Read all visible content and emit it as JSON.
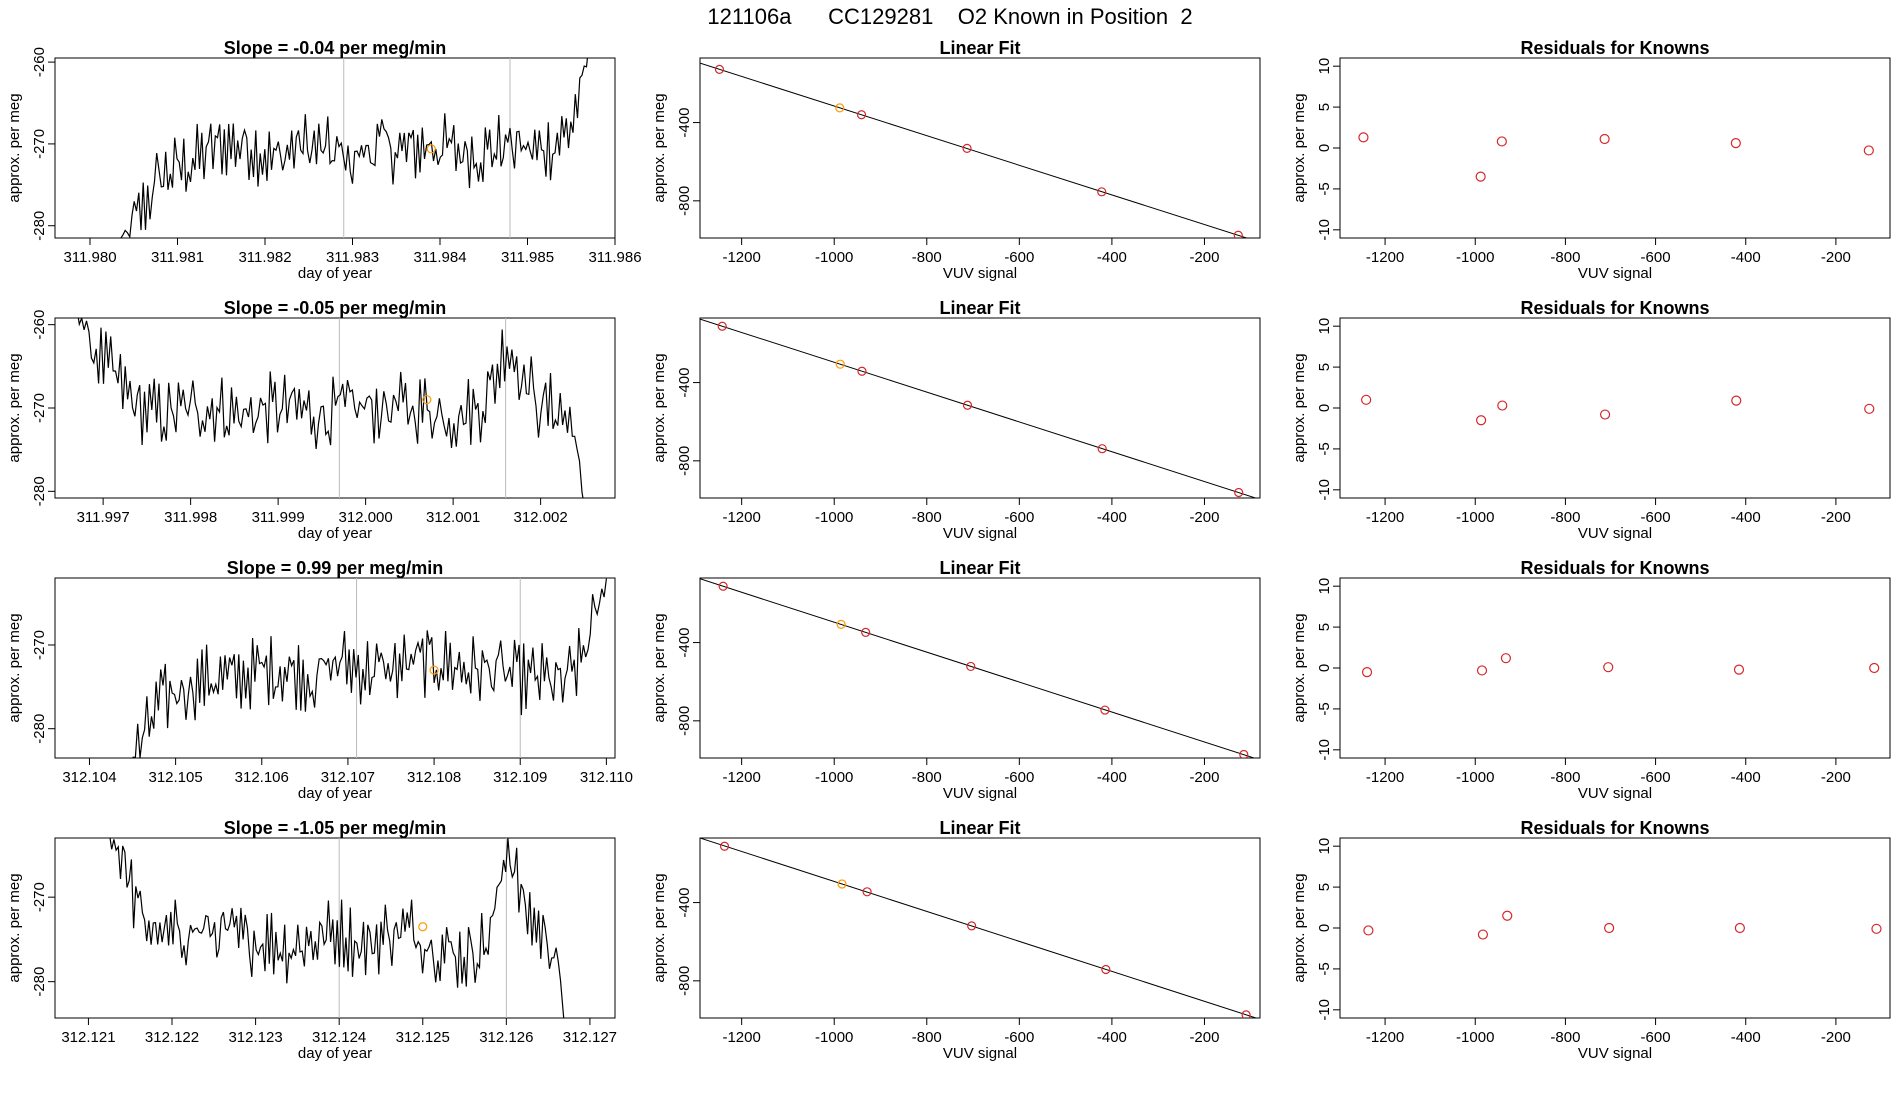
{
  "title": "121106a      CC129281    O2 Known in Position  2",
  "colors": {
    "line": "#000000",
    "point": "#d62728",
    "highlight": "#ff9900",
    "vline": "#bbbbbb",
    "axis": "#000000"
  },
  "rows": [
    {
      "timeseries": {
        "title": "Slope =  -0.04  per meg/min",
        "xlabel": "day of year",
        "ylabel": "approx. per meg",
        "xlim": [
          311.9796,
          311.986
        ],
        "ylim": [
          -281.5,
          -259.5
        ],
        "xticks": [
          311.98,
          311.981,
          311.982,
          311.983,
          311.984,
          311.985,
          311.986
        ],
        "xdec": 3,
        "yticks": [
          -280,
          -270,
          -260
        ],
        "vlines": [
          311.9829,
          311.9848
        ],
        "marker": {
          "x": 311.9839,
          "y": -270.6
        },
        "start_x": 311.9803,
        "end_x": 311.9857,
        "anchors": [
          [
            311.9803,
            -283
          ],
          [
            311.9806,
            -278
          ],
          [
            311.9808,
            -274
          ],
          [
            311.9812,
            -272
          ],
          [
            311.9815,
            -270
          ],
          [
            311.9818,
            -270
          ],
          [
            311.9821,
            -272
          ],
          [
            311.9824,
            -270
          ],
          [
            311.9827,
            -271
          ],
          [
            311.983,
            -272
          ],
          [
            311.9833,
            -270
          ],
          [
            311.9836,
            -271
          ],
          [
            311.9839,
            -270
          ],
          [
            311.9842,
            -271
          ],
          [
            311.9845,
            -271
          ],
          [
            311.9848,
            -270
          ],
          [
            311.9851,
            -271
          ],
          [
            311.9853,
            -270
          ],
          [
            311.9855,
            -268
          ],
          [
            311.9856,
            -263
          ],
          [
            311.9857,
            -259
          ]
        ]
      },
      "fit": {
        "title": "Linear Fit",
        "xlabel": "VUV signal",
        "ylabel": "approx. per meg",
        "xlim": [
          -1290,
          -80
        ],
        "ylim": [
          -990,
          -70
        ],
        "xticks": [
          -1200,
          -1000,
          -800,
          -600,
          -400,
          -200
        ],
        "yticks": [
          -400,
          -800
        ],
        "points": [
          [
            -1248,
            -128
          ],
          [
            -988,
            -325
          ],
          [
            -941,
            -360
          ],
          [
            -713,
            -532
          ],
          [
            -422,
            -754
          ],
          [
            -127,
            -976
          ]
        ],
        "highlight_index": 1
      },
      "resid": {
        "title": "Residuals for Knowns",
        "xlabel": "VUV signal",
        "ylabel": "approx. per meg",
        "xlim": [
          -1300,
          -80
        ],
        "ylim": [
          -11,
          11
        ],
        "xticks": [
          -1200,
          -1000,
          -800,
          -600,
          -400,
          -200
        ],
        "yticks": [
          10,
          5,
          0,
          -5,
          -10
        ],
        "points": [
          [
            -1248,
            1.3
          ],
          [
            -988,
            -3.5
          ],
          [
            -941,
            0.8
          ],
          [
            -713,
            1.1
          ],
          [
            -422,
            0.6
          ],
          [
            -127,
            -0.3
          ]
        ]
      }
    },
    {
      "timeseries": {
        "title": "Slope =  -0.05  per meg/min",
        "xlabel": "day of year",
        "ylabel": "approx. per meg",
        "xlim": [
          311.99645,
          312.00285
        ],
        "ylim": [
          -280.8,
          -259.2
        ],
        "xticks": [
          311.997,
          311.998,
          311.999,
          312.0,
          312.001,
          312.002
        ],
        "xdec": 3,
        "yticks": [
          -280,
          -270,
          -260
        ],
        "vlines": [
          311.9997,
          312.0016
        ],
        "marker": {
          "x": 312.0007,
          "y": -269.0
        },
        "start_x": 311.9967,
        "end_x": 312.0025,
        "anchors": [
          [
            311.9967,
            -258
          ],
          [
            311.9969,
            -263
          ],
          [
            311.9971,
            -266
          ],
          [
            311.9974,
            -270
          ],
          [
            311.9977,
            -271
          ],
          [
            311.998,
            -270
          ],
          [
            311.9983,
            -270
          ],
          [
            311.9986,
            -271
          ],
          [
            311.9989,
            -270
          ],
          [
            311.9992,
            -270
          ],
          [
            311.9995,
            -271
          ],
          [
            311.9998,
            -270
          ],
          [
            312.0001,
            -270
          ],
          [
            312.0004,
            -270
          ],
          [
            312.0007,
            -270
          ],
          [
            312.001,
            -271
          ],
          [
            312.0013,
            -270
          ],
          [
            312.0015,
            -266
          ],
          [
            312.0016,
            -262
          ],
          [
            312.0018,
            -266
          ],
          [
            312.002,
            -270
          ],
          [
            312.0022,
            -270
          ],
          [
            312.0024,
            -273
          ],
          [
            312.0025,
            -283
          ]
        ]
      },
      "fit": {
        "title": "Linear Fit",
        "xlabel": "VUV signal",
        "ylabel": "approx. per meg",
        "xlim": [
          -1290,
          -80
        ],
        "ylim": [
          -990,
          -70
        ],
        "xticks": [
          -1200,
          -1000,
          -800,
          -600,
          -400,
          -200
        ],
        "yticks": [
          -400,
          -800
        ],
        "points": [
          [
            -1242,
            -112
          ],
          [
            -987,
            -306
          ],
          [
            -940,
            -342
          ],
          [
            -712,
            -516
          ],
          [
            -421,
            -738
          ],
          [
            -126,
            -962
          ]
        ],
        "highlight_index": 1
      },
      "resid": {
        "title": "Residuals for Knowns",
        "xlabel": "VUV signal",
        "ylabel": "approx. per meg",
        "xlim": [
          -1300,
          -80
        ],
        "ylim": [
          -11,
          11
        ],
        "xticks": [
          -1200,
          -1000,
          -800,
          -600,
          -400,
          -200
        ],
        "yticks": [
          10,
          5,
          0,
          -5,
          -10
        ],
        "points": [
          [
            -1242,
            1.0
          ],
          [
            -987,
            -1.5
          ],
          [
            -940,
            0.3
          ],
          [
            -712,
            -0.8
          ],
          [
            -421,
            0.9
          ],
          [
            -126,
            -0.1
          ]
        ]
      }
    },
    {
      "timeseries": {
        "title": "Slope =  0.99  per meg/min",
        "xlabel": "day of year",
        "ylabel": "approx. per meg",
        "xlim": [
          312.1036,
          312.1101
        ],
        "ylim": [
          -283.5,
          -262.0
        ],
        "xticks": [
          312.104,
          312.105,
          312.106,
          312.107,
          312.108,
          312.109,
          312.11
        ],
        "xdec": 3,
        "yticks": [
          -280,
          -270
        ],
        "vlines": [
          312.1071,
          312.109
        ],
        "marker": {
          "x": 312.108,
          "y": -273.0
        },
        "start_x": 312.1044,
        "end_x": 312.11,
        "anchors": [
          [
            312.1044,
            -285
          ],
          [
            312.1046,
            -282
          ],
          [
            312.1048,
            -277
          ],
          [
            312.1051,
            -275
          ],
          [
            312.1054,
            -274
          ],
          [
            312.1057,
            -274
          ],
          [
            312.106,
            -273
          ],
          [
            312.1063,
            -273
          ],
          [
            312.1066,
            -274
          ],
          [
            312.1069,
            -272
          ],
          [
            312.1072,
            -273
          ],
          [
            312.1075,
            -273
          ],
          [
            312.1078,
            -272
          ],
          [
            312.1081,
            -272
          ],
          [
            312.1084,
            -273
          ],
          [
            312.1087,
            -273
          ],
          [
            312.109,
            -274
          ],
          [
            312.1093,
            -274
          ],
          [
            312.1095,
            -275
          ],
          [
            312.1097,
            -272
          ],
          [
            312.1099,
            -266
          ],
          [
            312.11,
            -262
          ]
        ]
      },
      "fit": {
        "title": "Linear Fit",
        "xlabel": "VUV signal",
        "ylabel": "approx. per meg",
        "xlim": [
          -1290,
          -80
        ],
        "ylim": [
          -990,
          -70
        ],
        "xticks": [
          -1200,
          -1000,
          -800,
          -600,
          -400,
          -200
        ],
        "yticks": [
          -400,
          -800
        ],
        "points": [
          [
            -1240,
            -112
          ],
          [
            -985,
            -307
          ],
          [
            -932,
            -348
          ],
          [
            -705,
            -522
          ],
          [
            -415,
            -745
          ],
          [
            -115,
            -972
          ]
        ],
        "highlight_index": 1
      },
      "resid": {
        "title": "Residuals for Knowns",
        "xlabel": "VUV signal",
        "ylabel": "approx. per meg",
        "xlim": [
          -1300,
          -80
        ],
        "ylim": [
          -11,
          11
        ],
        "xticks": [
          -1200,
          -1000,
          -800,
          -600,
          -400,
          -200
        ],
        "yticks": [
          10,
          5,
          0,
          -5,
          -10
        ],
        "points": [
          [
            -1240,
            -0.5
          ],
          [
            -985,
            -0.3
          ],
          [
            -932,
            1.2
          ],
          [
            -705,
            0.1
          ],
          [
            -415,
            -0.2
          ],
          [
            -115,
            0.0
          ]
        ]
      }
    },
    {
      "timeseries": {
        "title": "Slope =  -1.05  per meg/min",
        "xlabel": "day of year",
        "ylabel": "approx. per meg",
        "xlim": [
          312.1206,
          312.1273
        ],
        "ylim": [
          -284.3,
          -263.0
        ],
        "xticks": [
          312.121,
          312.122,
          312.123,
          312.124,
          312.125,
          312.126,
          312.127
        ],
        "xdec": 3,
        "yticks": [
          -280,
          -270
        ],
        "vlines": [
          312.124,
          312.126
        ],
        "marker": {
          "x": 312.125,
          "y": -273.5
        },
        "start_x": 312.1212,
        "end_x": 312.1267,
        "anchors": [
          [
            312.1212,
            -262
          ],
          [
            312.1214,
            -265
          ],
          [
            312.1216,
            -272
          ],
          [
            312.1219,
            -275
          ],
          [
            312.1222,
            -274
          ],
          [
            312.1225,
            -274
          ],
          [
            312.1228,
            -275
          ],
          [
            312.1231,
            -275
          ],
          [
            312.1234,
            -276
          ],
          [
            312.1237,
            -275
          ],
          [
            312.124,
            -274
          ],
          [
            312.1243,
            -276
          ],
          [
            312.1246,
            -274
          ],
          [
            312.1249,
            -274
          ],
          [
            312.1252,
            -276
          ],
          [
            312.1255,
            -277
          ],
          [
            312.1258,
            -275
          ],
          [
            312.1259,
            -270
          ],
          [
            312.126,
            -263
          ],
          [
            312.1262,
            -271
          ],
          [
            312.1264,
            -274
          ],
          [
            312.1266,
            -276
          ],
          [
            312.1267,
            -286
          ]
        ]
      },
      "fit": {
        "title": "Linear Fit",
        "xlabel": "VUV signal",
        "ylabel": "approx. per meg",
        "xlim": [
          -1290,
          -80
        ],
        "ylim": [
          -990,
          -70
        ],
        "xticks": [
          -1200,
          -1000,
          -800,
          -600,
          -400,
          -200
        ],
        "yticks": [
          -400,
          -800
        ],
        "points": [
          [
            -1237,
            -112
          ],
          [
            -983,
            -305
          ],
          [
            -929,
            -345
          ],
          [
            -703,
            -519
          ],
          [
            -413,
            -742
          ],
          [
            -110,
            -974
          ]
        ],
        "highlight_index": 1
      },
      "resid": {
        "title": "Residuals for Knowns",
        "xlabel": "VUV signal",
        "ylabel": "approx. per meg",
        "xlim": [
          -1300,
          -80
        ],
        "ylim": [
          -11,
          11
        ],
        "xticks": [
          -1200,
          -1000,
          -800,
          -600,
          -400,
          -200
        ],
        "yticks": [
          10,
          5,
          0,
          -5,
          -10
        ],
        "points": [
          [
            -1237,
            -0.3
          ],
          [
            -983,
            -0.8
          ],
          [
            -929,
            1.5
          ],
          [
            -703,
            0.0
          ],
          [
            -413,
            0.0
          ],
          [
            -110,
            -0.1
          ]
        ]
      }
    }
  ]
}
